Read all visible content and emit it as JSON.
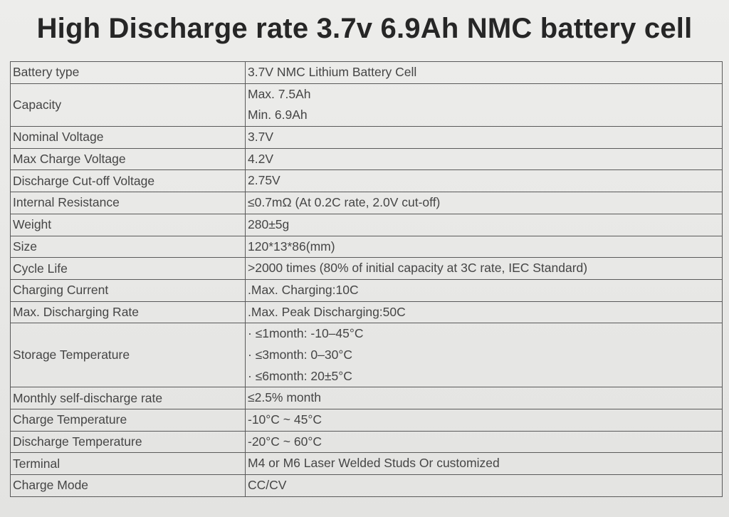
{
  "title": "High Discharge rate 3.7v 6.9Ah NMC battery cell",
  "rows": [
    {
      "label": "Battery type",
      "values": [
        "3.7V NMC Lithium Battery Cell"
      ]
    },
    {
      "label": "Capacity",
      "values": [
        "Max. 7.5Ah",
        "Min.  6.9Ah"
      ]
    },
    {
      "label": "Nominal Voltage",
      "values": [
        "3.7V"
      ]
    },
    {
      "label": "Max Charge Voltage",
      "values": [
        "4.2V"
      ]
    },
    {
      "label": "Discharge Cut-off Voltage",
      "values": [
        "2.75V"
      ]
    },
    {
      "label": "Internal Resistance",
      "values": [
        "≤0.7mΩ (At 0.2C rate, 2.0V cut-off)"
      ]
    },
    {
      "label": "Weight",
      "values": [
        "280±5g"
      ]
    },
    {
      "label": "Size",
      "values": [
        "120*13*86(mm)"
      ]
    },
    {
      "label": "Cycle Life",
      "values": [
        ">2000 times (80% of initial capacity at 3C rate, IEC Standard)"
      ]
    },
    {
      "label": "Charging Current",
      "values": [
        ".Max. Charging:10C"
      ]
    },
    {
      "label": "Max. Discharging Rate",
      "values": [
        ".Max. Peak Discharging:50C"
      ]
    },
    {
      "label": "Storage Temperature",
      "values": [
        "· ≤1month: -10–45°C",
        "· ≤3month: 0–30°C",
        "· ≤6month: 20±5°C"
      ]
    },
    {
      "label": "Monthly self-discharge rate",
      "values": [
        "≤2.5% month"
      ]
    },
    {
      "label": "Charge Temperature",
      "values": [
        "-10°C ~ 45°C"
      ]
    },
    {
      "label": "Discharge Temperature",
      "values": [
        "-20°C ~ 60°C"
      ]
    },
    {
      "label": "Terminal",
      "values": [
        "M4 or M6 Laser Welded Studs Or customized"
      ]
    },
    {
      "label": "Charge Mode",
      "values": [
        "CC/CV"
      ]
    }
  ]
}
